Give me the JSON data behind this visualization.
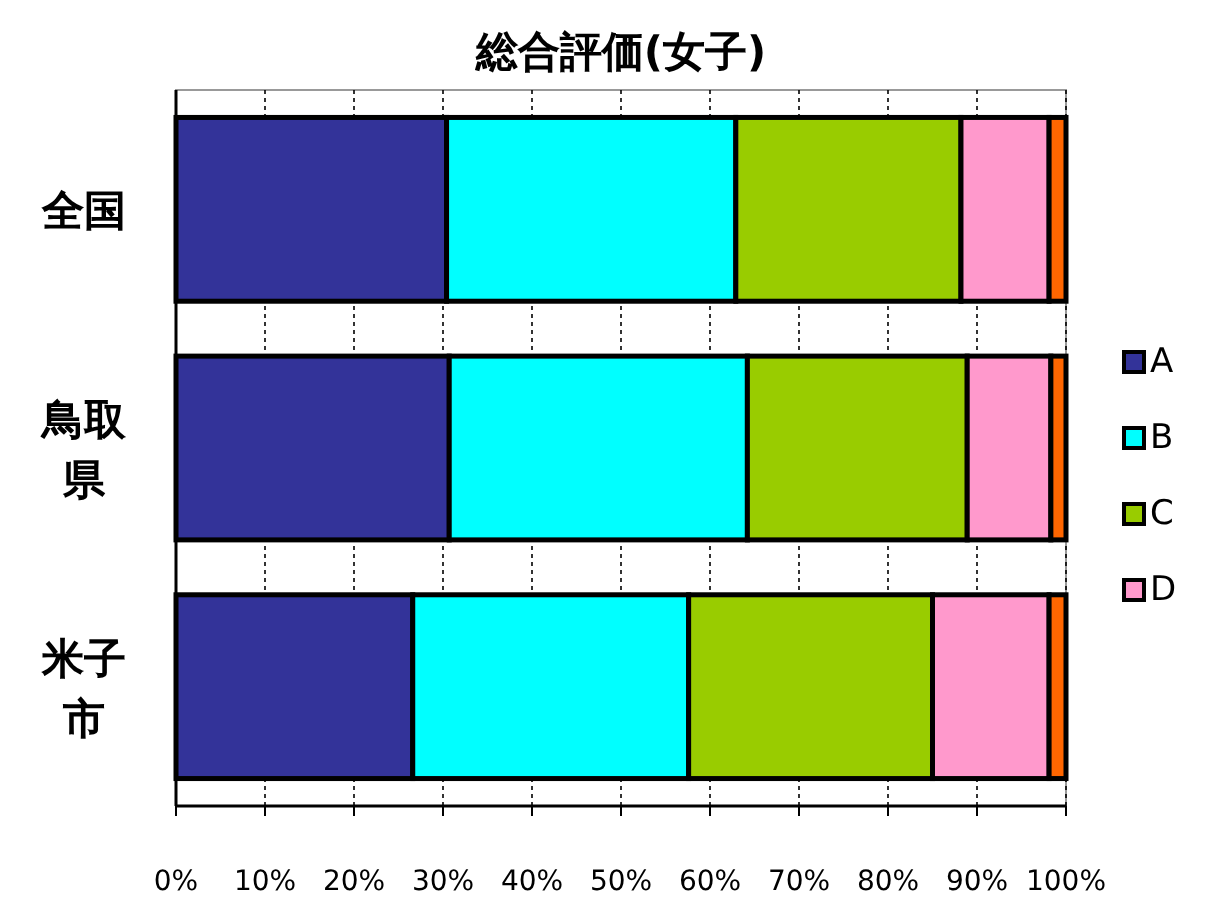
{
  "chart_data": {
    "type": "bar",
    "title": "総合評価(女子)",
    "orientation": "horizontal",
    "stacked": true,
    "categories": [
      "全国",
      "鳥取県",
      "米子市"
    ],
    "series": [
      {
        "name": "A",
        "color": "#333399",
        "values": [
          30.4,
          30.7,
          26.6
        ]
      },
      {
        "name": "B",
        "color": "#00ffff",
        "values": [
          32.5,
          33.5,
          31.0
        ]
      },
      {
        "name": "C",
        "color": "#99cc00",
        "values": [
          25.3,
          24.7,
          27.4
        ]
      },
      {
        "name": "D",
        "color": "#ff99cc",
        "values": [
          9.9,
          9.4,
          13.1
        ]
      },
      {
        "color": "#ff6600",
        "values": [
          1.9,
          1.7,
          1.9
        ]
      }
    ],
    "xlim": [
      0,
      100
    ],
    "xticks": [
      {
        "value": 0,
        "label": "0%"
      },
      {
        "value": 10,
        "label": "10%"
      },
      {
        "value": 20,
        "label": "20%"
      },
      {
        "value": 30,
        "label": "30%"
      },
      {
        "value": 40,
        "label": "40%"
      },
      {
        "value": 50,
        "label": "50%"
      },
      {
        "value": 60,
        "label": "60%"
      },
      {
        "value": 70,
        "label": "70%"
      },
      {
        "value": 80,
        "label": "80%"
      },
      {
        "value": 90,
        "label": "90%"
      },
      {
        "value": 100,
        "label": "100%"
      }
    ],
    "grid": "x",
    "legend": "right"
  }
}
